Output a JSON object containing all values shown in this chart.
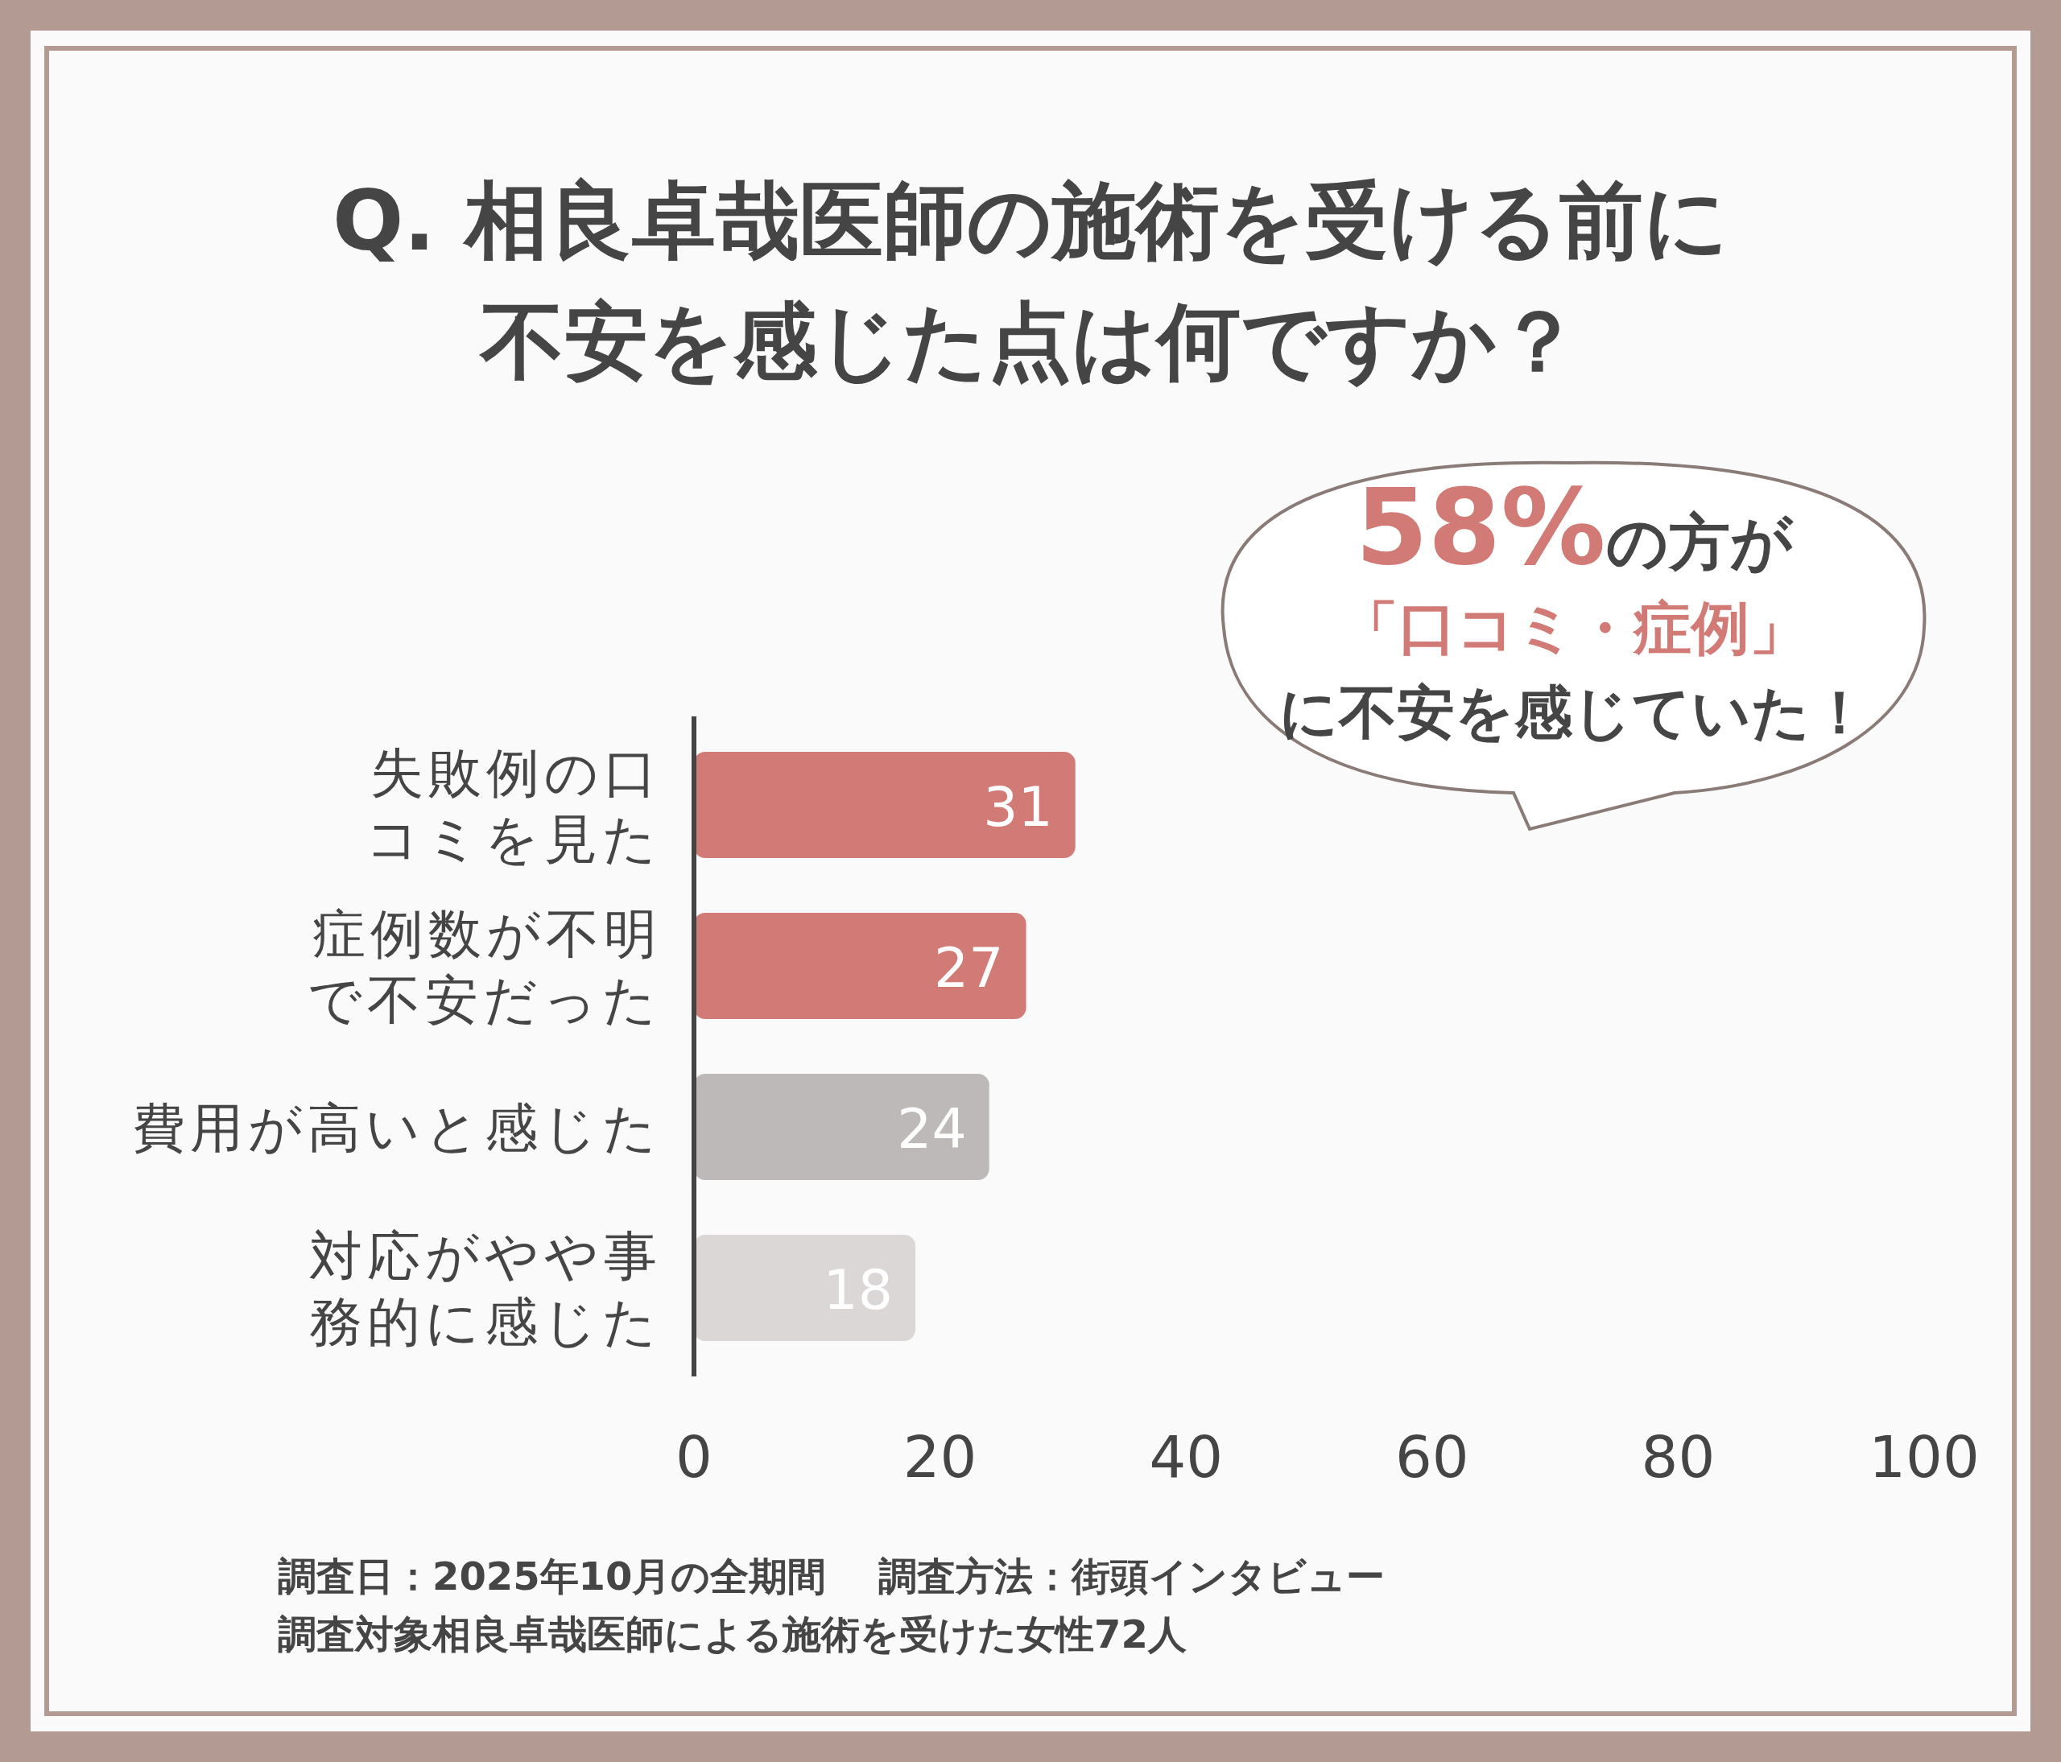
{
  "chart_data": {
    "type": "bar",
    "orientation": "horizontal",
    "title": "Q. 相良卓哉医師の施術を受ける前に不安を感じた点は何ですか？",
    "categories": [
      "失敗例の口コミを見た",
      "症例数が不明で不安だった",
      "費用が高いと感じた",
      "対応がやや事務的に感じた"
    ],
    "values": [
      31,
      27,
      24,
      18
    ],
    "colors": [
      "#d27b76",
      "#d27b76",
      "#bdb9b8",
      "#dad7d6"
    ],
    "xlim": [
      0,
      100
    ],
    "xticks": [
      0,
      20,
      40,
      60,
      80,
      100
    ],
    "data_labels": true,
    "grid": false,
    "annotations": [
      "58%の方が「口コミ・症例」に不安を感じていた！",
      "調査日：2025年10月の全期間　 調査方法：街頭インタビュー",
      "調査対象相良卓哉医師による施術を受けた女性72人"
    ]
  }
}
